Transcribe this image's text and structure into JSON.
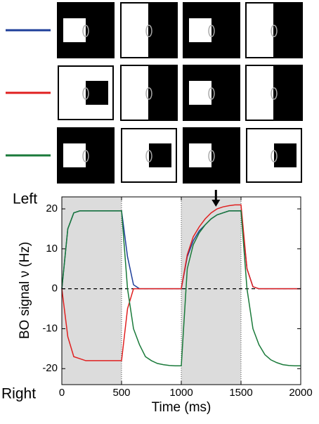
{
  "chart_data": {
    "type": "line",
    "x_label": "Time (ms)",
    "y_label": "BO signal ν (Hz)",
    "annotations": {
      "top": "Left",
      "bottom": "Right"
    },
    "x": [
      0,
      50,
      100,
      150,
      200,
      250,
      300,
      350,
      400,
      450,
      500,
      550,
      600,
      650,
      700,
      750,
      800,
      850,
      900,
      950,
      1000,
      1050,
      1100,
      1150,
      1200,
      1250,
      1300,
      1350,
      1400,
      1450,
      1500,
      1550,
      1600,
      1650,
      1700,
      1750,
      1800,
      1850,
      1900,
      1950,
      2000
    ],
    "series": [
      {
        "color": "#1f3f9a",
        "values": [
          0,
          15,
          19,
          19.5,
          19.5,
          19.5,
          19.5,
          19.5,
          19.5,
          19.5,
          19.5,
          8,
          1,
          0,
          0,
          0,
          0,
          0,
          0,
          0,
          0,
          8,
          12,
          14.5,
          16,
          17.5,
          18.5,
          19,
          19.5,
          19.5,
          19.5,
          5,
          0.5,
          0,
          0,
          0,
          0,
          0,
          0,
          0,
          0
        ]
      },
      {
        "color": "#e02020",
        "values": [
          0,
          -12,
          -17,
          -17.5,
          -18,
          -18,
          -18,
          -18,
          -18,
          -18,
          -18,
          -5,
          0,
          0,
          0,
          0,
          0,
          0,
          0,
          0,
          0,
          8.5,
          13,
          15.5,
          17.5,
          19,
          20,
          20.5,
          20.8,
          21,
          21,
          5,
          0.5,
          0,
          0,
          0,
          0,
          0,
          0,
          0,
          0
        ]
      },
      {
        "color": "#1a7a3a",
        "values": [
          0,
          15,
          19,
          19.5,
          19.5,
          19.5,
          19.5,
          19.5,
          19.5,
          19.5,
          19.5,
          0,
          -10,
          -14,
          -17,
          -18,
          -18.7,
          -19,
          -19.2,
          -19.3,
          -19.3,
          5,
          11,
          14,
          16,
          17.5,
          18.5,
          19,
          19.5,
          19.5,
          19.5,
          0,
          -10,
          -14,
          -16.5,
          -17.8,
          -18.5,
          -19,
          -19.2,
          -19.3,
          -19.3
        ]
      }
    ],
    "xlim": [
      0,
      2000
    ],
    "xticks": [
      0,
      500,
      1000,
      1500,
      2000
    ],
    "ylim": [
      -24,
      23
    ],
    "yticks": [
      -20,
      -10,
      0,
      10,
      20
    ],
    "shaded_regions": [
      [
        0,
        500
      ],
      [
        1000,
        1500
      ]
    ],
    "zero_line": 0,
    "arrow_x": 1290
  }
}
